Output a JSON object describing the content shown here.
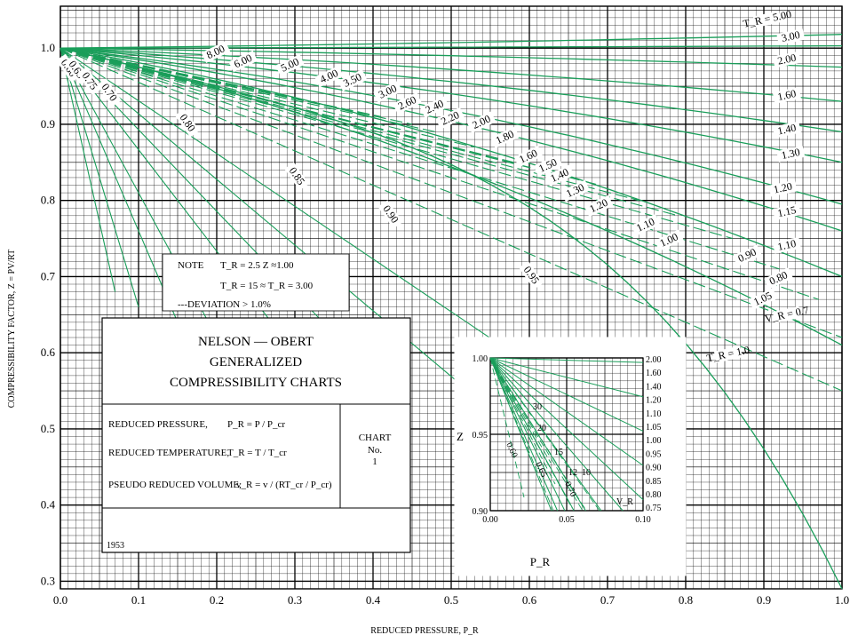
{
  "chart_data": {
    "type": "line",
    "title": "NELSON — OBERT GENERALIZED COMPRESSIBILITY CHARTS",
    "title_lines": [
      "NELSON — OBERT",
      "GENERALIZED",
      "COMPRESSIBILITY CHARTS"
    ],
    "xlabel": "REDUCED PRESSURE, P_R",
    "ylabel": "COMPRESSIBILITY FACTOR, Z = PV/RT",
    "xlim": [
      0.0,
      1.0
    ],
    "ylim": [
      0.29,
      1.055
    ],
    "x_ticks": [
      "0.0",
      "0.1",
      "0.2",
      "0.3",
      "0.4",
      "0.5",
      "0.6",
      "0.7",
      "0.8",
      "0.9",
      "1.0"
    ],
    "y_ticks": [
      "0.3",
      "0.4",
      "0.5",
      "0.6",
      "0.7",
      "0.8",
      "0.9",
      "1.0"
    ],
    "grid": true,
    "tr_curves": [
      {
        "label": "5.00",
        "z_at_1": 1.018
      },
      {
        "label": "3.00",
        "z_at_1": 1.003
      },
      {
        "label": "2.00",
        "z_at_1": 0.975
      },
      {
        "label": "1.60",
        "z_at_1": 0.93
      },
      {
        "label": "1.40",
        "z_at_1": 0.89
      },
      {
        "label": "1.30",
        "z_at_1": 0.85
      },
      {
        "label": "1.20",
        "z_at_1": 0.795
      },
      {
        "label": "1.15",
        "z_at_1": 0.76
      },
      {
        "label": "1.10",
        "z_at_1": 0.7
      },
      {
        "label": "1.05",
        "z_at_1": 0.61
      },
      {
        "label": "1.0",
        "z_at_1": 0.29
      }
    ],
    "vr_curves": [
      {
        "label": "8.00",
        "p_at_end": 0.13,
        "z_at_end": 0.96
      },
      {
        "label": "6.00",
        "p_at_end": 0.17,
        "z_at_end": 0.955
      },
      {
        "label": "5.00",
        "p_at_end": 0.2,
        "z_at_end": 0.95
      },
      {
        "label": "4.00",
        "p_at_end": 0.26,
        "z_at_end": 0.94
      },
      {
        "label": "3.50",
        "p_at_end": 0.3,
        "z_at_end": 0.935
      },
      {
        "label": "3.00",
        "p_at_end": 0.36,
        "z_at_end": 0.92
      },
      {
        "label": "2.60",
        "p_at_end": 0.41,
        "z_at_end": 0.91
      },
      {
        "label": "2.40",
        "p_at_end": 0.45,
        "z_at_end": 0.9
      },
      {
        "label": "2.20",
        "p_at_end": 0.48,
        "z_at_end": 0.89
      },
      {
        "label": "2.00",
        "p_at_end": 0.53,
        "z_at_end": 0.87
      },
      {
        "label": "1.80",
        "p_at_end": 0.58,
        "z_at_end": 0.85
      },
      {
        "label": "1.60",
        "p_at_end": 0.65,
        "z_at_end": 0.83
      },
      {
        "label": "1.50",
        "p_at_end": 0.69,
        "z_at_end": 0.82
      },
      {
        "label": "1.40",
        "p_at_end": 0.74,
        "z_at_end": 0.8
      },
      {
        "label": "1.30",
        "p_at_end": 0.79,
        "z_at_end": 0.78
      },
      {
        "label": "1.20",
        "p_at_end": 0.86,
        "z_at_end": 0.75
      },
      {
        "label": "1.10",
        "p_at_end": 0.92,
        "z_at_end": 0.71
      },
      {
        "label": "1.00",
        "p_at_end": 0.97,
        "z_at_end": 0.67
      },
      {
        "label": "0.90",
        "p_at_end": 1.0,
        "z_at_end": 0.62
      },
      {
        "label": "0.80",
        "p_at_end": 1.0,
        "z_at_end": 0.55
      },
      {
        "label": "0.95",
        "p_at_end": 0.78,
        "z_at_end": 0.46
      },
      {
        "label": "0.90",
        "p_at_end": 0.58,
        "z_at_end": 0.5
      },
      {
        "label": "0.85",
        "p_at_end": 0.42,
        "z_at_end": 0.55
      },
      {
        "label": "0.80",
        "p_at_end": 0.3,
        "z_at_end": 0.6
      },
      {
        "label": "0.75",
        "p_at_end": 0.2,
        "z_at_end": 0.62
      },
      {
        "label": "0.70",
        "p_at_end": 0.15,
        "z_at_end": 0.64
      },
      {
        "label": "0.65",
        "p_at_end": 0.1,
        "z_at_end": 0.66
      },
      {
        "label": "0.60",
        "p_at_end": 0.07,
        "z_at_end": 0.68
      }
    ],
    "vr_low_labels": [
      {
        "label": "0.60",
        "p": 0.008,
        "z": 0.972
      },
      {
        "label": "0.65",
        "p": 0.018,
        "z": 0.97
      },
      {
        "label": "0.75",
        "p": 0.035,
        "z": 0.955
      },
      {
        "label": "0.70",
        "p": 0.06,
        "z": 0.94
      },
      {
        "label": "0.80",
        "p": 0.16,
        "z": 0.9
      },
      {
        "label": "0.85",
        "p": 0.3,
        "z": 0.83
      },
      {
        "label": "0.90",
        "p": 0.42,
        "z": 0.78
      },
      {
        "label": "0.95",
        "p": 0.6,
        "z": 0.7
      }
    ],
    "vr_mid_labels": [
      {
        "label": "8.00",
        "p": 0.2,
        "z": 0.992
      },
      {
        "label": "6.00",
        "p": 0.235,
        "z": 0.98
      },
      {
        "label": "5.00",
        "p": 0.295,
        "z": 0.975
      },
      {
        "label": "4.00",
        "p": 0.345,
        "z": 0.96
      },
      {
        "label": "3.50",
        "p": 0.375,
        "z": 0.955
      },
      {
        "label": "3.00",
        "p": 0.42,
        "z": 0.94
      },
      {
        "label": "2.60",
        "p": 0.445,
        "z": 0.925
      },
      {
        "label": "2.40",
        "p": 0.48,
        "z": 0.92
      },
      {
        "label": "2.20",
        "p": 0.5,
        "z": 0.905
      },
      {
        "label": "2.00",
        "p": 0.54,
        "z": 0.9
      },
      {
        "label": "1.80",
        "p": 0.57,
        "z": 0.88
      },
      {
        "label": "1.60",
        "p": 0.6,
        "z": 0.855
      },
      {
        "label": "1.50",
        "p": 0.625,
        "z": 0.843
      },
      {
        "label": "1.40",
        "p": 0.64,
        "z": 0.83
      },
      {
        "label": "1.30",
        "p": 0.66,
        "z": 0.81
      },
      {
        "label": "1.20",
        "p": 0.69,
        "z": 0.79
      },
      {
        "label": "1.10",
        "p": 0.75,
        "z": 0.765
      },
      {
        "label": "1.00",
        "p": 0.78,
        "z": 0.745
      },
      {
        "label": "0.90",
        "p": 0.88,
        "z": 0.725
      },
      {
        "label": "0.80",
        "p": 0.92,
        "z": 0.695
      },
      {
        "label": "1.05",
        "p": 0.9,
        "z": 0.668
      }
    ],
    "tr_right_labels": [
      {
        "label": "T_R = 5.00",
        "p": 0.905,
        "z": 1.035
      },
      {
        "label": "3.00",
        "p": 0.935,
        "z": 1.012
      },
      {
        "label": "2.00",
        "p": 0.93,
        "z": 0.982
      },
      {
        "label": "1.60",
        "p": 0.93,
        "z": 0.935
      },
      {
        "label": "1.40",
        "p": 0.93,
        "z": 0.89
      },
      {
        "label": "1.30",
        "p": 0.935,
        "z": 0.858
      },
      {
        "label": "1.20",
        "p": 0.925,
        "z": 0.813
      },
      {
        "label": "1.15",
        "p": 0.93,
        "z": 0.782
      },
      {
        "label": "1.10",
        "p": 0.93,
        "z": 0.738
      },
      {
        "label": "V_R = 0.7",
        "p": 0.93,
        "z": 0.647
      },
      {
        "label": "T_R = 1.0",
        "p": 0.855,
        "z": 0.595
      }
    ],
    "note": {
      "head": "NOTE",
      "line1": "T_R = 2.5   Z ≈1.00",
      "line2": "T_R = 15  ≈  T_R = 3.00",
      "line3": "---DEVIATION > 1.0%"
    },
    "definitions": {
      "reduced_pressure": "REDUCED PRESSURE,",
      "reduced_pressure_eq": "P_R = P / P_cr",
      "reduced_temperature": "REDUCED TEMPERATURE,",
      "reduced_temperature_eq": "T_R = T / T_cr",
      "pseudo_reduced_volume": "PSEUDO REDUCED VOLUME,",
      "pseudo_reduced_volume_eq": "v_R = v / (RT_cr / P_cr)"
    },
    "chart_box": {
      "line1": "CHART",
      "line2": "No.",
      "line3": "1"
    },
    "year": "1953",
    "inset": {
      "xlim": [
        0.0,
        0.1
      ],
      "ylim": [
        0.9,
        1.0
      ],
      "x_ticks": [
        "0.00",
        "0.05",
        "0.10"
      ],
      "y_ticks": [
        "0.90",
        "0.95",
        "1.00"
      ],
      "xlabel": "P_R",
      "ylabel": "Z",
      "tr_labels": [
        "2.00",
        "1.60",
        "1.40",
        "1.20",
        "1.10",
        "1.05",
        "1.00",
        "0.95",
        "0.90",
        "0.85",
        "0.80",
        "0.75"
      ],
      "vr_labels": [
        "30",
        "20",
        "15",
        "12",
        "10",
        "0.60",
        "0.65",
        "0.70"
      ],
      "vr_label": "V_R"
    }
  }
}
